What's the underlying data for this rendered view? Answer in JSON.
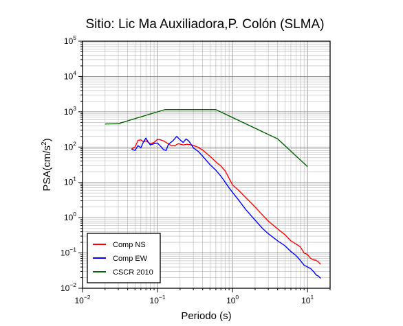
{
  "chart_data": {
    "type": "line",
    "title": "Sitio: Lic Ma Auxiliadora,P. Colón (SLMA)",
    "xlabel": "Periodo (s)",
    "ylabel_base": "PSA(cm/s",
    "ylabel_exp": "2",
    "ylabel_end": ")",
    "x_scale": "log",
    "y_scale": "log",
    "xlim": [
      0.01,
      20
    ],
    "ylim": [
      0.01,
      100000
    ],
    "grid": true,
    "x_ticks": [
      {
        "base": "10",
        "exp": "−2",
        "value": 0.01
      },
      {
        "base": "10",
        "exp": "−1",
        "value": 0.1
      },
      {
        "base": "10",
        "exp": "0",
        "value": 1
      },
      {
        "base": "10",
        "exp": "1",
        "value": 10
      }
    ],
    "y_ticks": [
      {
        "base": "10",
        "exp": "−2",
        "value": 0.01
      },
      {
        "base": "10",
        "exp": "−1",
        "value": 0.1
      },
      {
        "base": "10",
        "exp": "0",
        "value": 1
      },
      {
        "base": "10",
        "exp": "1",
        "value": 10
      },
      {
        "base": "10",
        "exp": "2",
        "value": 100
      },
      {
        "base": "10",
        "exp": "3",
        "value": 1000
      },
      {
        "base": "10",
        "exp": "4",
        "value": 10000
      },
      {
        "base": "10",
        "exp": "5",
        "value": 100000
      }
    ],
    "legend_position": "bottom-left",
    "series": [
      {
        "name": "Comp NS",
        "color": "#ff0000",
        "points": [
          [
            0.045,
            88
          ],
          [
            0.05,
            100
          ],
          [
            0.055,
            155
          ],
          [
            0.06,
            160
          ],
          [
            0.065,
            140
          ],
          [
            0.07,
            150
          ],
          [
            0.08,
            125
          ],
          [
            0.09,
            135
          ],
          [
            0.1,
            165
          ],
          [
            0.11,
            160
          ],
          [
            0.12,
            150
          ],
          [
            0.13,
            135
          ],
          [
            0.15,
            112
          ],
          [
            0.17,
            110
          ],
          [
            0.19,
            125
          ],
          [
            0.22,
            115
          ],
          [
            0.25,
            120
          ],
          [
            0.3,
            112
          ],
          [
            0.35,
            98
          ],
          [
            0.4,
            82
          ],
          [
            0.5,
            55
          ],
          [
            0.6,
            38
          ],
          [
            0.7,
            29
          ],
          [
            0.8,
            21
          ],
          [
            0.9,
            13
          ],
          [
            1.0,
            8.5
          ],
          [
            1.2,
            6.0
          ],
          [
            1.5,
            3.7
          ],
          [
            2.0,
            2.0
          ],
          [
            2.5,
            1.2
          ],
          [
            3.0,
            0.8
          ],
          [
            4.0,
            0.48
          ],
          [
            5.0,
            0.33
          ],
          [
            6.0,
            0.22
          ],
          [
            7.0,
            0.18
          ],
          [
            8.0,
            0.15
          ],
          [
            9.0,
            0.1
          ],
          [
            10.0,
            0.09
          ],
          [
            11.0,
            0.07
          ],
          [
            12.0,
            0.064
          ],
          [
            13.0,
            0.062
          ],
          [
            14.0,
            0.055
          ],
          [
            15.0,
            0.048
          ]
        ]
      },
      {
        "name": "Comp EW",
        "color": "#0000ff",
        "points": [
          [
            0.045,
            88
          ],
          [
            0.05,
            80
          ],
          [
            0.055,
            110
          ],
          [
            0.06,
            95
          ],
          [
            0.065,
            140
          ],
          [
            0.07,
            180
          ],
          [
            0.075,
            140
          ],
          [
            0.08,
            115
          ],
          [
            0.09,
            125
          ],
          [
            0.1,
            130
          ],
          [
            0.11,
            105
          ],
          [
            0.12,
            85
          ],
          [
            0.13,
            80
          ],
          [
            0.14,
            120
          ],
          [
            0.16,
            150
          ],
          [
            0.18,
            200
          ],
          [
            0.2,
            160
          ],
          [
            0.22,
            135
          ],
          [
            0.24,
            170
          ],
          [
            0.26,
            150
          ],
          [
            0.28,
            120
          ],
          [
            0.3,
            95
          ],
          [
            0.35,
            75
          ],
          [
            0.4,
            55
          ],
          [
            0.5,
            32
          ],
          [
            0.6,
            22
          ],
          [
            0.7,
            15
          ],
          [
            0.8,
            10
          ],
          [
            0.9,
            7.0
          ],
          [
            1.0,
            5.2
          ],
          [
            1.2,
            3.2
          ],
          [
            1.5,
            1.7
          ],
          [
            2.0,
            0.85
          ],
          [
            2.5,
            0.5
          ],
          [
            3.0,
            0.35
          ],
          [
            4.0,
            0.22
          ],
          [
            5.0,
            0.16
          ],
          [
            6.0,
            0.11
          ],
          [
            7.0,
            0.085
          ],
          [
            8.0,
            0.062
          ],
          [
            9.0,
            0.045
          ],
          [
            10.0,
            0.04
          ],
          [
            11.0,
            0.036
          ],
          [
            12.0,
            0.03
          ],
          [
            13.0,
            0.024
          ],
          [
            14.0,
            0.022
          ],
          [
            15.0,
            0.019
          ]
        ]
      },
      {
        "name": "CSCR 2010",
        "color": "#006400",
        "points": [
          [
            0.02,
            450
          ],
          [
            0.03,
            460
          ],
          [
            0.125,
            1150
          ],
          [
            0.6,
            1150
          ],
          [
            4.0,
            170
          ],
          [
            10.0,
            28
          ]
        ]
      }
    ]
  }
}
